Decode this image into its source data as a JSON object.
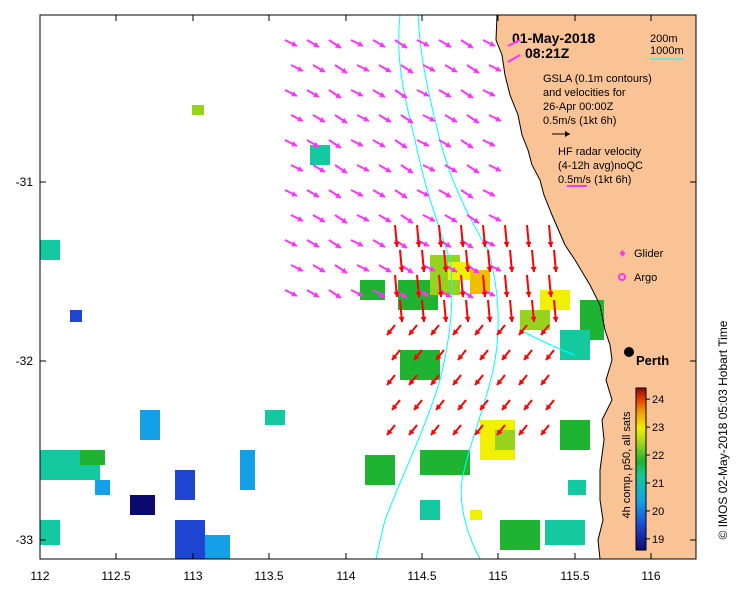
{
  "map": {
    "date": "01-May-2018",
    "time": "08:21Z",
    "depth_contours": [
      "200m",
      "1000m"
    ],
    "gsla_note_lines": [
      "GSLA (0.1m contours)",
      "and velocities for",
      "26-Apr 00:00Z",
      "0.5m/s (1kt 6h)"
    ],
    "hf_radar_lines": [
      "HF radar velocity",
      "(4-12h avg)noQC",
      "0.5m/s (1kt 6h)"
    ],
    "glider_label": "Glider",
    "argo_label": "Argo",
    "city_label": "Perth",
    "credit": "© IMOS 02-May-2018 05:03 Hobart Time",
    "colorbar_title": "4h comp, p50, all sats",
    "colorbar_ticks": [
      "24",
      "23",
      "22",
      "21",
      "20",
      "19"
    ],
    "colorbar_range": [
      18.6,
      24.4
    ],
    "x_ticks": [
      "112",
      "112.5",
      "113",
      "113.5",
      "114",
      "114.5",
      "115",
      "115.5",
      "116"
    ],
    "y_ticks": [
      "-31",
      "-32",
      "-33"
    ],
    "lon_range": [
      112,
      116.3
    ],
    "lat_range": [
      -33.1,
      -30.1
    ],
    "perth": {
      "lon": 115.86,
      "lat": -31.95
    },
    "colors": {
      "land": "#F9C396",
      "contour": "#00FFFF",
      "gsla_arrow": "#FF33FF",
      "hf_arrow": "#FF0000"
    }
  }
}
